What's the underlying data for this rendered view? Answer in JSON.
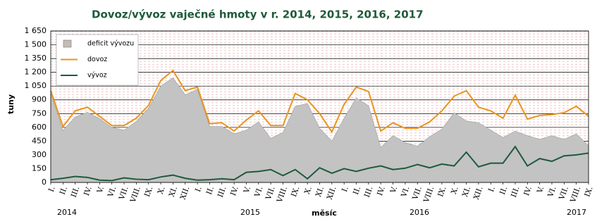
{
  "chart_data": {
    "type": "line",
    "title": "Dovoz/vývoz vaječné hmoty v r. 2014, 2015, 2016, 2017",
    "y_label": "tuny",
    "x_label": "měsíc",
    "categories": [
      "I.",
      "II.",
      "III.",
      "IV.",
      "V.",
      "VI.",
      "VII.",
      "VIII.",
      "IX.",
      "X.",
      "XI.",
      "XII.",
      "I.",
      "II.",
      "III.",
      "IV.",
      "V.",
      "VI.",
      "VII.",
      "VIII.",
      "IX.",
      "X.",
      "XI.",
      "XII.",
      "I.",
      "II.",
      "III.",
      "IV.",
      "V.",
      "VI.",
      "VII.",
      "VIII.",
      "IX.",
      "X.",
      "XI.",
      "XII.",
      "I.",
      "II.",
      "III.",
      "IV.",
      "V.",
      "VI.",
      "VII.",
      "VIII.",
      "IX."
    ],
    "years": [
      "2014",
      "2015",
      "2016",
      "2017"
    ],
    "series": [
      {
        "name": "deficit vývozu",
        "color": "#c4bcb8",
        "area": true,
        "values": [
          970,
          565,
          715,
          765,
          695,
          600,
          570,
          665,
          810,
          1050,
          1140,
          955,
          1015,
          610,
          610,
          530,
          570,
          660,
          480,
          545,
          830,
          860,
          590,
          450,
          700,
          920,
          835,
          380,
          510,
          435,
          395,
          500,
          580,
          760,
          670,
          650,
          570,
          490,
          560,
          510,
          470,
          510,
          470,
          530,
          400
        ]
      },
      {
        "name": "dovoz",
        "color": "#e8951e",
        "values": [
          1000,
          610,
          780,
          820,
          720,
          620,
          620,
          700,
          840,
          1110,
          1220,
          1000,
          1040,
          640,
          650,
          560,
          680,
          780,
          620,
          620,
          970,
          900,
          750,
          550,
          850,
          1040,
          990,
          560,
          650,
          590,
          590,
          660,
          780,
          940,
          1000,
          820,
          780,
          700,
          950,
          690,
          730,
          740,
          760,
          830,
          720
        ]
      },
      {
        "name": "vývoz",
        "color": "#1e5a3c",
        "values": [
          30,
          45,
          65,
          55,
          25,
          20,
          50,
          35,
          30,
          60,
          80,
          45,
          25,
          30,
          40,
          30,
          110,
          120,
          140,
          75,
          140,
          40,
          160,
          100,
          150,
          120,
          155,
          180,
          140,
          155,
          195,
          160,
          200,
          180,
          330,
          170,
          210,
          210,
          390,
          180,
          260,
          230,
          290,
          300,
          320
        ]
      }
    ],
    "ylim": [
      0,
      1650
    ],
    "yticks": [
      0,
      150,
      300,
      450,
      600,
      750,
      900,
      {
        "value": 1050,
        "label": "1 050"
      },
      {
        "value": 1200,
        "label": "1 200"
      },
      {
        "value": 1350,
        "label": "1 350"
      },
      {
        "value": 1500,
        "label": "1 500"
      },
      {
        "value": 1650,
        "label": "1 650"
      }
    ],
    "grid": true
  }
}
